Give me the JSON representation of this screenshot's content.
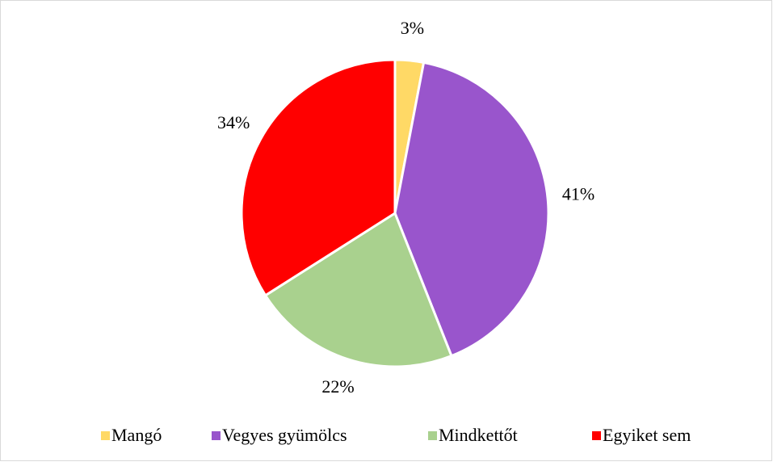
{
  "chart_data": {
    "type": "pie",
    "categories": [
      "Mangó",
      "Vegyes gyümölcs",
      "Mindkettőt",
      "Egyiket sem"
    ],
    "values": [
      3,
      41,
      22,
      34
    ],
    "value_labels": [
      "3%",
      "41%",
      "22%",
      "34%"
    ],
    "colors": [
      "#FFD966",
      "#9955CC",
      "#A9D18E",
      "#FF0000"
    ],
    "legend": "bottom"
  }
}
